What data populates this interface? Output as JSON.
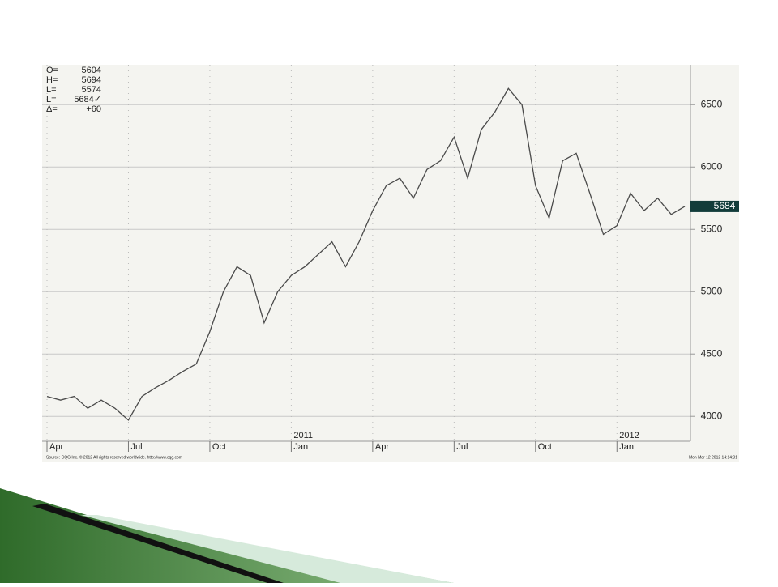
{
  "chart_data": {
    "type": "line",
    "color": "#4a4a4a",
    "categories": [
      "Apr",
      null,
      null,
      null,
      null,
      null,
      "Jul",
      null,
      null,
      null,
      null,
      null,
      "Oct",
      null,
      null,
      null,
      null,
      null,
      "Jan",
      null,
      null,
      null,
      null,
      null,
      "Apr",
      null,
      null,
      null,
      null,
      null,
      "Jul",
      null,
      null,
      null,
      null,
      null,
      "Oct",
      null,
      null,
      null,
      null,
      null,
      "Jan",
      null,
      null,
      null,
      null,
      null
    ],
    "x_year_labels": [
      "2011",
      "2012"
    ],
    "values": [
      4160,
      4130,
      4160,
      4065,
      4130,
      4065,
      3970,
      4160,
      4230,
      4290,
      4360,
      4420,
      4680,
      5000,
      5200,
      5130,
      4750,
      5000,
      5130,
      5200,
      5300,
      5400,
      5200,
      5400,
      5650,
      5850,
      5910,
      5750,
      5980,
      6050,
      6240,
      5910,
      6300,
      6440,
      6630,
      6500,
      5850,
      5590,
      6050,
      6110,
      5790,
      5460,
      5530,
      5790,
      5650,
      5750,
      5620,
      5684
    ],
    "ylim": [
      3800,
      6820
    ],
    "yticks": [
      4000,
      4500,
      5000,
      5500,
      6000,
      6500
    ],
    "grid": true,
    "last_price": 5684,
    "readout": [
      {
        "label": "O=",
        "value": "5604"
      },
      {
        "label": "H=",
        "value": "5694"
      },
      {
        "label": "L=",
        "value": "5574"
      },
      {
        "label": "L=",
        "value": "5684✓"
      },
      {
        "label": "Δ=",
        "value": "+60"
      }
    ],
    "source": "Source: CQG Inc. © 2012 All rights reserved worldwide. http://www.cqg.com",
    "timestamp": "Mon Mar 12 2012 14:14:31"
  }
}
